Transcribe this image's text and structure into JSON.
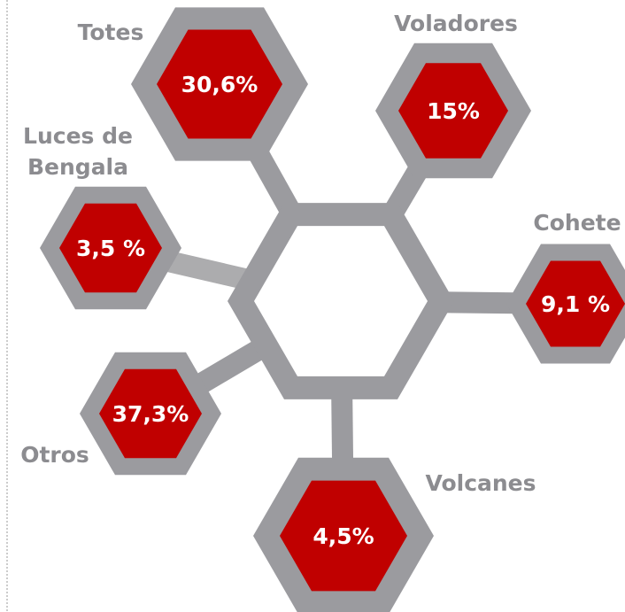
{
  "nodes": [
    {
      "label": "Totes",
      "value": "30,6%"
    },
    {
      "label": "Voladores",
      "value": "15%"
    },
    {
      "label": [
        "Luces de",
        "Bengala"
      ],
      "value": "3,5 %"
    },
    {
      "label": "Cohete",
      "value": "9,1 %"
    },
    {
      "label": "Otros",
      "value": "37,3%"
    },
    {
      "label": "Volcanes",
      "value": "4,5%"
    }
  ]
}
